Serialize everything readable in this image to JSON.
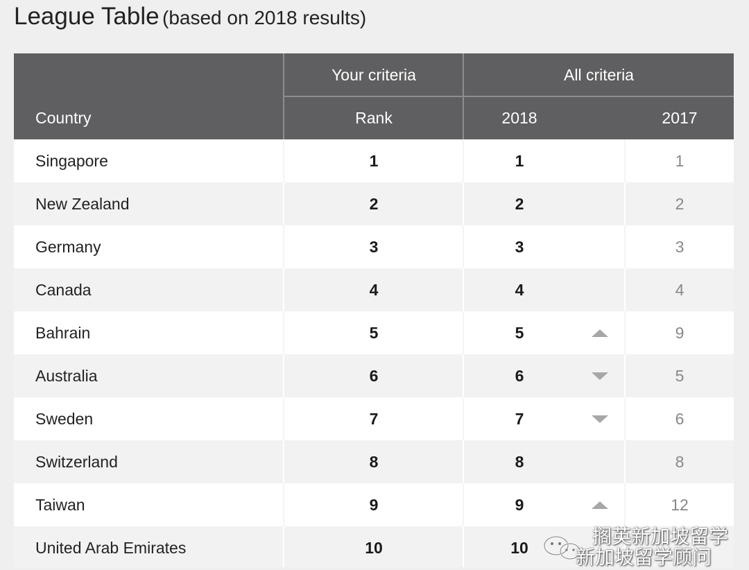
{
  "title": {
    "main": "League Table",
    "sub": "(based on 2018 results)"
  },
  "table": {
    "headers": {
      "country": "Country",
      "your_criteria": "Your criteria",
      "all_criteria": "All criteria",
      "rank": "Rank",
      "year_2018": "2018",
      "year_2017": "2017"
    },
    "rows": [
      {
        "country": "Singapore",
        "rank": "1",
        "y2018": "1",
        "trend": "none",
        "y2017": "1"
      },
      {
        "country": "New Zealand",
        "rank": "2",
        "y2018": "2",
        "trend": "none",
        "y2017": "2"
      },
      {
        "country": "Germany",
        "rank": "3",
        "y2018": "3",
        "trend": "none",
        "y2017": "3"
      },
      {
        "country": "Canada",
        "rank": "4",
        "y2018": "4",
        "trend": "none",
        "y2017": "4"
      },
      {
        "country": "Bahrain",
        "rank": "5",
        "y2018": "5",
        "trend": "up",
        "y2017": "9"
      },
      {
        "country": "Australia",
        "rank": "6",
        "y2018": "6",
        "trend": "down",
        "y2017": "5"
      },
      {
        "country": "Sweden",
        "rank": "7",
        "y2018": "7",
        "trend": "down",
        "y2017": "6"
      },
      {
        "country": "Switzerland",
        "rank": "8",
        "y2018": "8",
        "trend": "none",
        "y2017": "8"
      },
      {
        "country": "Taiwan",
        "rank": "9",
        "y2018": "9",
        "trend": "up",
        "y2017": "12"
      },
      {
        "country": "United Arab Emirates",
        "rank": "10",
        "y2018": "10",
        "trend": "none",
        "y2017": ""
      }
    ]
  },
  "watermark": {
    "line1": "搁英新加坡留学",
    "line2": "新加坡留学顾问",
    "icon": "wechat-icon"
  },
  "colors": {
    "header_bg": "#5f5f61",
    "page_bg": "#efefef",
    "arrow": "#a7a7a7"
  }
}
